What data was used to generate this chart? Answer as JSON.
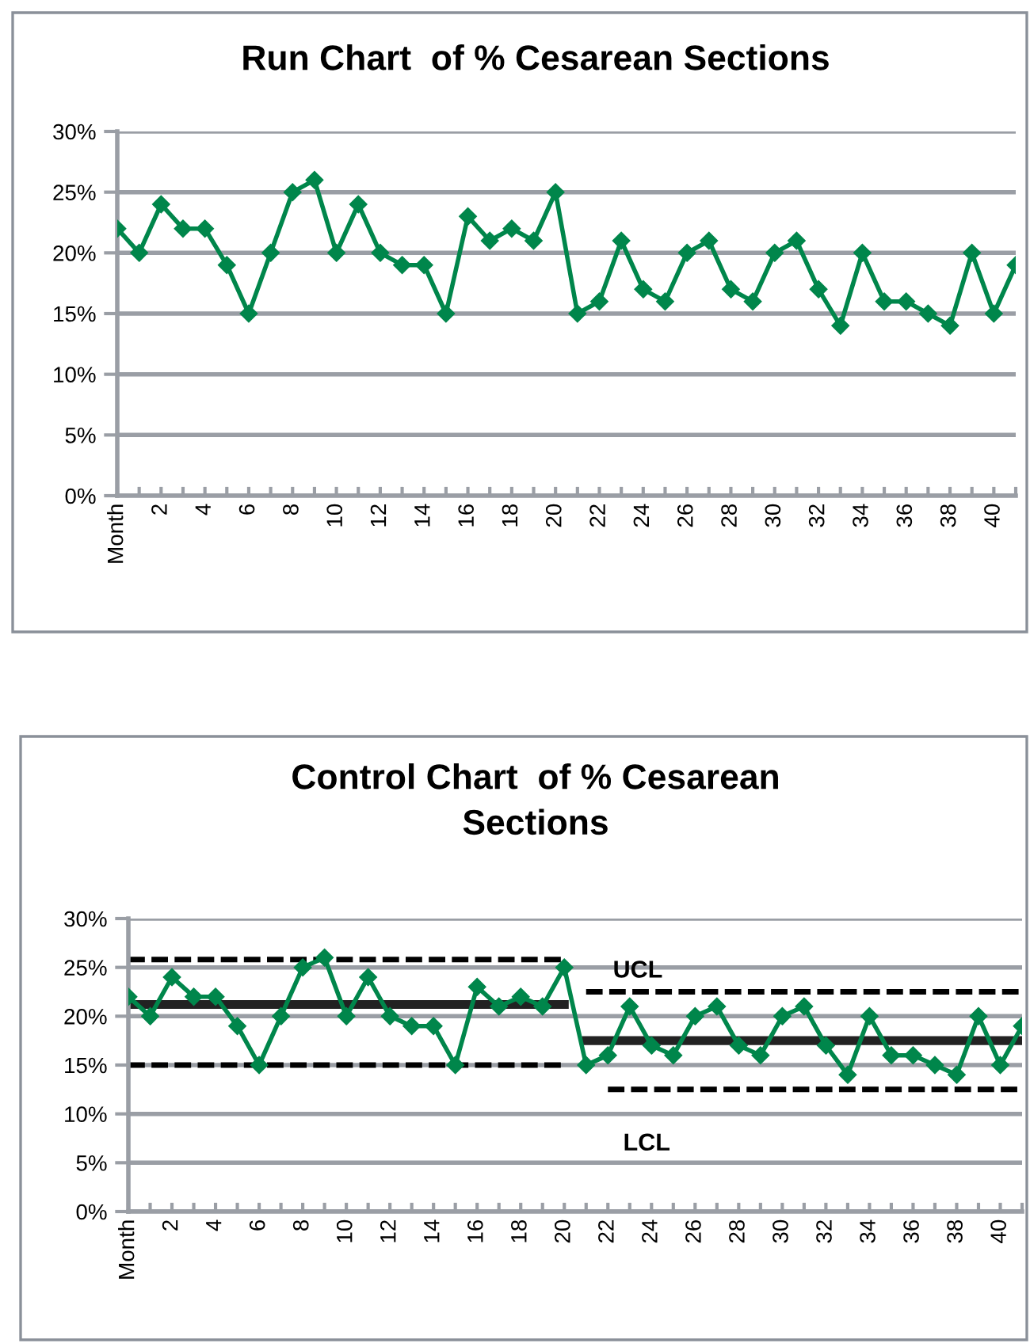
{
  "chart_data": [
    {
      "type": "line",
      "title": "Run Chart  of % Cesarean Sections",
      "categories": [
        "Month",
        null,
        "2",
        null,
        "4",
        null,
        "6",
        null,
        "8",
        null,
        "10",
        null,
        "12",
        null,
        "14",
        null,
        "16",
        null,
        "18",
        null,
        "20",
        null,
        "22",
        null,
        "24",
        null,
        "26",
        null,
        "28",
        null,
        "30",
        null,
        "32",
        null,
        "34",
        null,
        "36",
        null,
        "38",
        null,
        "40",
        null
      ],
      "series": [
        {
          "color": "#00864b",
          "marker": "diamond",
          "line_style": "solid",
          "values": [
            22,
            20,
            24,
            22,
            22,
            19,
            15,
            20,
            25,
            26,
            20,
            24,
            20,
            19,
            19,
            15,
            23,
            21,
            22,
            21,
            25,
            15,
            16,
            21,
            17,
            16,
            20,
            21,
            17,
            16,
            20,
            21,
            17,
            14,
            20,
            16,
            16,
            15,
            14,
            20,
            15,
            19
          ]
        }
      ],
      "ylim": [
        0,
        30
      ],
      "yticks": [
        {
          "value": 0,
          "label": "0%"
        },
        {
          "value": 5,
          "label": "5%"
        },
        {
          "value": 10,
          "label": "10%"
        },
        {
          "value": 15,
          "label": "15%"
        },
        {
          "value": 20,
          "label": "20%"
        },
        {
          "value": 25,
          "label": "25%"
        },
        {
          "value": 30,
          "label": "30%"
        }
      ],
      "grid": "y",
      "legend": false
    },
    {
      "type": "line",
      "title": "Control Chart  of % Cesarean\nSections",
      "categories": [
        "Month",
        null,
        "2",
        null,
        "4",
        null,
        "6",
        null,
        "8",
        null,
        "10",
        null,
        "12",
        null,
        "14",
        null,
        "16",
        null,
        "18",
        null,
        "20",
        null,
        "22",
        null,
        "24",
        null,
        "26",
        null,
        "28",
        null,
        "30",
        null,
        "32",
        null,
        "34",
        null,
        "36",
        null,
        "38",
        null,
        "40",
        null
      ],
      "series": [
        {
          "color": "#00864b",
          "marker": "diamond",
          "line_style": "solid",
          "values": [
            22,
            20,
            24,
            22,
            22,
            19,
            15,
            20,
            25,
            26,
            20,
            24,
            20,
            19,
            19,
            15,
            23,
            21,
            22,
            21,
            25,
            15,
            16,
            21,
            17,
            16,
            20,
            21,
            17,
            16,
            20,
            21,
            17,
            14,
            20,
            16,
            16,
            15,
            14,
            20,
            15,
            19
          ]
        },
        {
          "color": "#000000",
          "marker": "none",
          "line_style": "dashed",
          "values": [
            25.8,
            25.8,
            25.8,
            25.8,
            25.8,
            25.8,
            25.8,
            25.8,
            25.8,
            25.8,
            25.8,
            25.8,
            25.8,
            25.8,
            25.8,
            25.8,
            25.8,
            25.8,
            25.8,
            25.8,
            25.8,
            null,
            null,
            null,
            null,
            null,
            null,
            null,
            null,
            null,
            null,
            null,
            null,
            null,
            null,
            null,
            null,
            null,
            null,
            null,
            null,
            null
          ]
        },
        {
          "color": "#000000",
          "marker": "none",
          "line_style": "dashed",
          "values": [
            15,
            15,
            15,
            15,
            15,
            15,
            15,
            15,
            15,
            15,
            15,
            15,
            15,
            15,
            15,
            15,
            15,
            15,
            15,
            15,
            15,
            null,
            null,
            null,
            null,
            null,
            null,
            null,
            null,
            null,
            null,
            null,
            null,
            null,
            null,
            null,
            null,
            null,
            null,
            null,
            null,
            null
          ]
        },
        {
          "color": "#222222",
          "marker": "none",
          "line_style": "solid",
          "values": [
            21.2,
            21.2,
            21.2,
            21.2,
            21.2,
            21.2,
            21.2,
            21.2,
            21.2,
            21.2,
            21.2,
            21.2,
            21.2,
            21.2,
            21.2,
            21.2,
            21.2,
            21.2,
            21.2,
            21.2,
            21.2,
            null,
            null,
            null,
            null,
            null,
            null,
            null,
            null,
            null,
            null,
            null,
            null,
            null,
            null,
            null,
            null,
            null,
            null,
            null,
            null,
            null
          ]
        },
        {
          "color": "#000000",
          "marker": "none",
          "line_style": "dashed",
          "values": [
            null,
            null,
            null,
            null,
            null,
            null,
            null,
            null,
            null,
            null,
            null,
            null,
            null,
            null,
            null,
            null,
            null,
            null,
            null,
            null,
            null,
            22.5,
            22.5,
            22.5,
            22.5,
            22.5,
            22.5,
            22.5,
            22.5,
            22.5,
            22.5,
            22.5,
            22.5,
            22.5,
            22.5,
            22.5,
            22.5,
            22.5,
            22.5,
            22.5,
            22.5,
            22.5
          ]
        },
        {
          "color": "#000000",
          "marker": "none",
          "line_style": "dashed",
          "values": [
            null,
            null,
            null,
            null,
            null,
            null,
            null,
            null,
            null,
            null,
            null,
            null,
            null,
            null,
            null,
            null,
            null,
            null,
            null,
            null,
            null,
            null,
            12.5,
            12.5,
            12.5,
            12.5,
            12.5,
            12.5,
            12.5,
            12.5,
            12.5,
            12.5,
            12.5,
            12.5,
            12.5,
            12.5,
            12.5,
            12.5,
            12.5,
            12.5,
            12.5,
            12.5
          ]
        },
        {
          "color": "#222222",
          "marker": "none",
          "line_style": "solid",
          "values": [
            null,
            null,
            null,
            null,
            null,
            null,
            null,
            null,
            null,
            null,
            null,
            null,
            null,
            null,
            null,
            null,
            null,
            null,
            null,
            null,
            null,
            17.5,
            17.5,
            17.5,
            17.5,
            17.5,
            17.5,
            17.5,
            17.5,
            17.5,
            17.5,
            17.5,
            17.5,
            17.5,
            17.5,
            17.5,
            17.5,
            17.5,
            17.5,
            17.5,
            17.5,
            17.5
          ]
        }
      ],
      "annotations": [
        "UCL",
        "LCL"
      ],
      "ylim": [
        0,
        30
      ],
      "yticks": [
        {
          "value": 0,
          "label": "0%"
        },
        {
          "value": 5,
          "label": "5%"
        },
        {
          "value": 10,
          "label": "10%"
        },
        {
          "value": 15,
          "label": "15%"
        },
        {
          "value": 20,
          "label": "20%"
        },
        {
          "value": 25,
          "label": "25%"
        },
        {
          "value": 30,
          "label": "30%"
        }
      ],
      "grid": "y",
      "legend": false
    }
  ]
}
